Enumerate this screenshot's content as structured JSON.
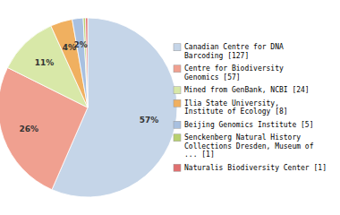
{
  "chart_data": {
    "type": "pie",
    "categories": [
      "Canadian Centre for DNA\nBarcoding [127]",
      "Centre for Biodiversity\nGenomics [57]",
      "Mined from GenBank, NCBI [24]",
      "Ilia State University,\nInstitute of Ecology [8]",
      "Beijing Genomics Institute [5]",
      "Senckenberg Natural History\nCollections Dresden, Museum of\n... [1]",
      "Naturalis Biodiversity Center [1]"
    ],
    "values": [
      57,
      26,
      11,
      4,
      2,
      0.4,
      0.4
    ],
    "value_labels": [
      "57%",
      "26%",
      "11%",
      "4%",
      "2%",
      null,
      null
    ],
    "colors": [
      "#c5d5e8",
      "#f0a090",
      "#d8e8a8",
      "#f0b060",
      "#a8c0e0",
      "#b8d070",
      "#e07070"
    ],
    "data_labels": true,
    "legend": "right"
  }
}
